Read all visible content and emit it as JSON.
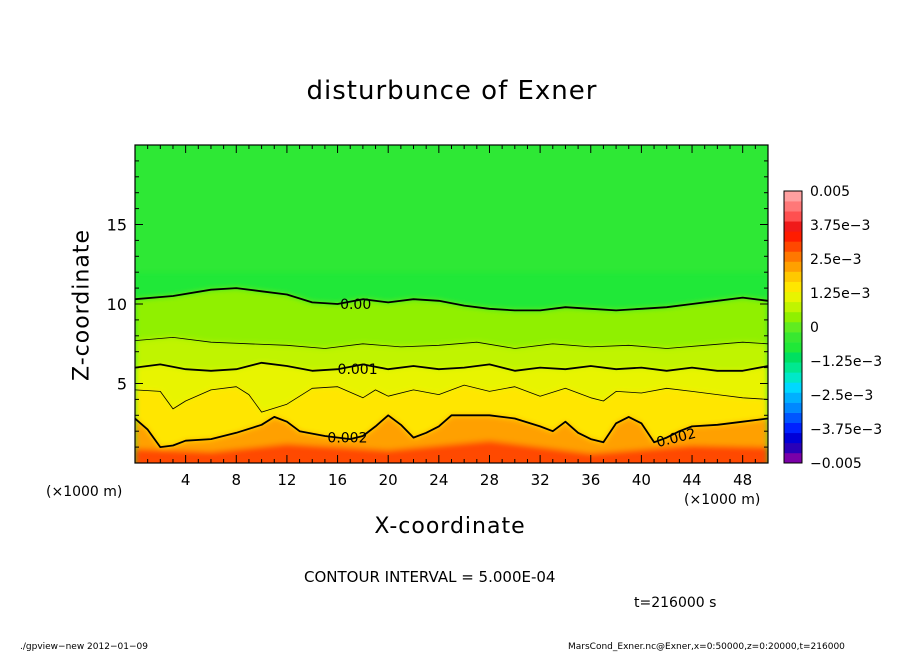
{
  "chart_data": {
    "type": "heatmap",
    "title": "disturbunce of Exner",
    "xlabel": "X-coordinate",
    "ylabel": "Z-coordinate",
    "x_unit_label": "(×1000 m)",
    "xlim": [
      0,
      50
    ],
    "ylim": [
      0,
      20
    ],
    "x_ticks": [
      4,
      8,
      12,
      16,
      20,
      24,
      28,
      32,
      36,
      40,
      44,
      48
    ],
    "y_ticks": [
      5,
      10,
      15
    ],
    "contour_interval_text": "CONTOUR INTERVAL = 5.000E-04",
    "contours": [
      {
        "level": 0.0,
        "label": "0.00",
        "label_x": 16.2,
        "label_z": 10.0,
        "major": true,
        "points": [
          [
            0,
            10.3
          ],
          [
            3,
            10.5
          ],
          [
            6,
            10.9
          ],
          [
            8,
            11.0
          ],
          [
            10,
            10.8
          ],
          [
            12,
            10.6
          ],
          [
            14,
            10.1
          ],
          [
            16,
            10.0
          ],
          [
            18,
            10.3
          ],
          [
            20,
            10.1
          ],
          [
            22,
            10.3
          ],
          [
            24,
            10.2
          ],
          [
            26,
            9.9
          ],
          [
            28,
            9.7
          ],
          [
            30,
            9.6
          ],
          [
            32,
            9.6
          ],
          [
            34,
            9.8
          ],
          [
            36,
            9.7
          ],
          [
            38,
            9.6
          ],
          [
            40,
            9.7
          ],
          [
            42,
            9.8
          ],
          [
            44,
            10.0
          ],
          [
            46,
            10.2
          ],
          [
            48,
            10.4
          ],
          [
            50,
            10.2
          ]
        ]
      },
      {
        "level": 0.0005,
        "label": "",
        "major": false,
        "points": [
          [
            0,
            7.7
          ],
          [
            3,
            7.9
          ],
          [
            6,
            7.6
          ],
          [
            9,
            7.5
          ],
          [
            12,
            7.4
          ],
          [
            15,
            7.2
          ],
          [
            18,
            7.5
          ],
          [
            21,
            7.3
          ],
          [
            24,
            7.4
          ],
          [
            27,
            7.6
          ],
          [
            30,
            7.2
          ],
          [
            33,
            7.5
          ],
          [
            36,
            7.3
          ],
          [
            39,
            7.4
          ],
          [
            42,
            7.2
          ],
          [
            45,
            7.4
          ],
          [
            48,
            7.6
          ],
          [
            50,
            7.5
          ]
        ]
      },
      {
        "level": 0.001,
        "label": "0.001",
        "label_x": 16.0,
        "label_z": 5.9,
        "major": true,
        "points": [
          [
            0,
            6.0
          ],
          [
            2,
            6.2
          ],
          [
            4,
            5.9
          ],
          [
            6,
            5.8
          ],
          [
            8,
            5.9
          ],
          [
            10,
            6.3
          ],
          [
            12,
            6.1
          ],
          [
            14,
            5.8
          ],
          [
            16,
            5.9
          ],
          [
            18,
            6.2
          ],
          [
            20,
            5.9
          ],
          [
            22,
            6.1
          ],
          [
            24,
            5.9
          ],
          [
            26,
            6.0
          ],
          [
            28,
            6.2
          ],
          [
            30,
            5.8
          ],
          [
            32,
            6.0
          ],
          [
            34,
            5.9
          ],
          [
            36,
            6.1
          ],
          [
            38,
            5.9
          ],
          [
            40,
            6.0
          ],
          [
            42,
            5.8
          ],
          [
            44,
            6.0
          ],
          [
            46,
            5.8
          ],
          [
            48,
            5.8
          ],
          [
            50,
            6.1
          ]
        ]
      },
      {
        "level": 0.0015,
        "label": "",
        "major": false,
        "points": [
          [
            0,
            4.6
          ],
          [
            2,
            4.5
          ],
          [
            3,
            3.4
          ],
          [
            4,
            3.9
          ],
          [
            6,
            4.6
          ],
          [
            8,
            4.8
          ],
          [
            9,
            4.3
          ],
          [
            10,
            3.2
          ],
          [
            12,
            3.7
          ],
          [
            14,
            4.7
          ],
          [
            16,
            4.8
          ],
          [
            18,
            4.1
          ],
          [
            19,
            4.6
          ],
          [
            20,
            4.2
          ],
          [
            22,
            4.6
          ],
          [
            24,
            4.3
          ],
          [
            26,
            4.9
          ],
          [
            28,
            4.5
          ],
          [
            30,
            4.8
          ],
          [
            32,
            4.2
          ],
          [
            34,
            4.7
          ],
          [
            36,
            4.1
          ],
          [
            37,
            3.9
          ],
          [
            38,
            4.5
          ],
          [
            40,
            4.4
          ],
          [
            42,
            4.7
          ],
          [
            44,
            4.5
          ],
          [
            46,
            4.3
          ],
          [
            48,
            4.1
          ],
          [
            50,
            4.0
          ]
        ]
      },
      {
        "level": 0.002,
        "label": "0.002",
        "label_x": 15.2,
        "label_z": 1.6,
        "major": true,
        "points": [
          [
            0,
            2.8
          ],
          [
            1,
            2.1
          ],
          [
            2,
            1.0
          ],
          [
            3,
            1.1
          ],
          [
            4,
            1.4
          ],
          [
            6,
            1.5
          ],
          [
            8,
            1.9
          ],
          [
            10,
            2.4
          ],
          [
            11,
            2.9
          ],
          [
            12,
            2.6
          ],
          [
            13,
            2.0
          ],
          [
            15,
            1.7
          ],
          [
            17,
            1.5
          ],
          [
            18,
            1.7
          ],
          [
            19,
            2.3
          ],
          [
            20,
            3.0
          ],
          [
            21,
            2.4
          ],
          [
            22,
            1.6
          ],
          [
            23,
            1.9
          ],
          [
            24,
            2.3
          ],
          [
            25,
            3.0
          ],
          [
            26,
            3.0
          ],
          [
            28,
            3.0
          ],
          [
            30,
            2.8
          ],
          [
            32,
            2.3
          ],
          [
            33,
            2.0
          ],
          [
            34,
            2.6
          ],
          [
            35,
            1.9
          ],
          [
            36,
            1.5
          ],
          [
            37,
            1.3
          ],
          [
            38,
            2.5
          ],
          [
            39,
            2.9
          ],
          [
            40,
            2.5
          ],
          [
            41,
            1.3
          ],
          [
            42,
            1.6
          ],
          [
            43,
            2.0
          ],
          [
            44,
            2.3
          ],
          [
            46,
            2.4
          ],
          [
            48,
            2.6
          ],
          [
            50,
            2.8
          ]
        ]
      }
    ],
    "colorbar": {
      "min": -0.005,
      "max": 0.005,
      "bands": [
        "#7a00a8",
        "#2a00b8",
        "#0000d8",
        "#0022ff",
        "#0055ff",
        "#0088ff",
        "#00b0ff",
        "#00d8ff",
        "#00e8c8",
        "#00e890",
        "#00e060",
        "#20e838",
        "#38e830",
        "#60ec20",
        "#90f000",
        "#c0f400",
        "#e8f400",
        "#ffe600",
        "#ffc800",
        "#ffa000",
        "#ff7800",
        "#ff4800",
        "#ff1c00",
        "#f01a1a",
        "#ff5050",
        "#ff7878",
        "#ffa0a0"
      ],
      "labels": [
        "0.005",
        "3.75e−3",
        "2.5e−3",
        "1.25e−3",
        "0",
        "−1.25e−3",
        "−2.5e−3",
        "−3.75e−3",
        "−0.005"
      ]
    }
  },
  "annotation": {
    "time": "t=216000 s"
  },
  "footer": {
    "left": "./gpview−new  2012−01−09",
    "right": "MarsCond_Exner.nc@Exner,x=0:50000,z=0:20000,t=216000"
  }
}
